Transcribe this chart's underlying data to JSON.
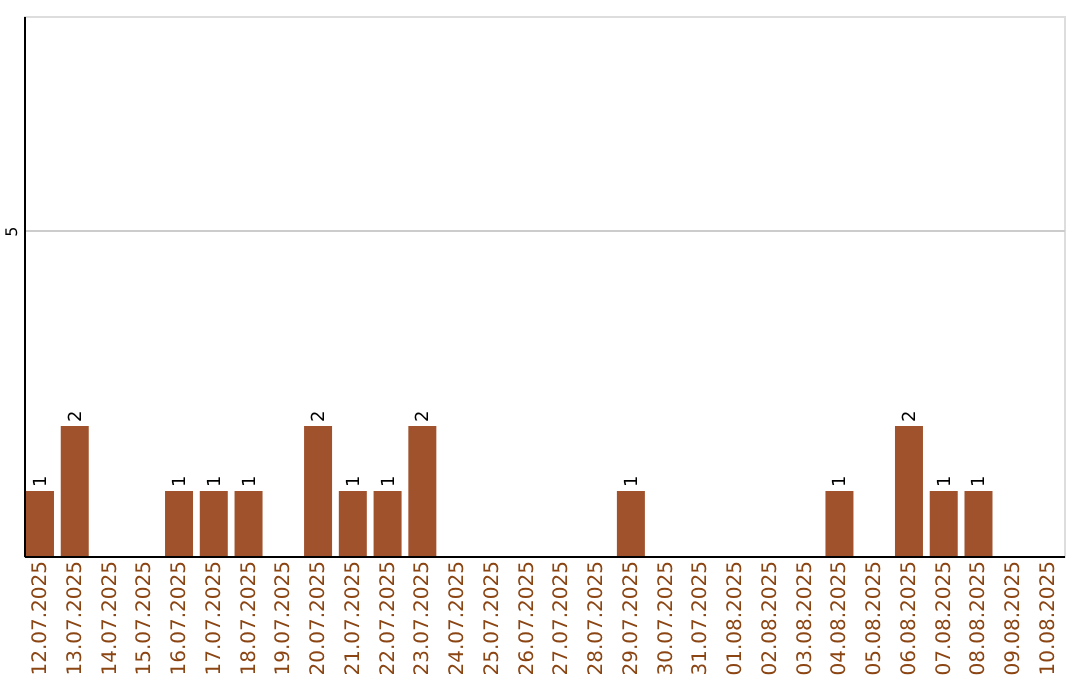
{
  "chart_data": {
    "type": "bar",
    "categories": [
      "12.07.2025",
      "13.07.2025",
      "14.07.2025",
      "15.07.2025",
      "16.07.2025",
      "17.07.2025",
      "18.07.2025",
      "19.07.2025",
      "20.07.2025",
      "21.07.2025",
      "22.07.2025",
      "23.07.2025",
      "24.07.2025",
      "25.07.2025",
      "26.07.2025",
      "27.07.2025",
      "28.07.2025",
      "29.07.2025",
      "30.07.2025",
      "31.07.2025",
      "01.08.2025",
      "02.08.2025",
      "03.08.2025",
      "04.08.2025",
      "05.08.2025",
      "06.08.2025",
      "07.08.2025",
      "08.08.2025",
      "09.08.2025",
      "10.08.2025"
    ],
    "values": [
      1,
      2,
      0,
      0,
      1,
      1,
      1,
      0,
      2,
      1,
      1,
      2,
      0,
      0,
      0,
      0,
      0,
      1,
      0,
      0,
      0,
      0,
      0,
      1,
      0,
      2,
      1,
      1,
      0,
      0
    ],
    "value_labels": [
      "1",
      "2",
      null,
      null,
      "1",
      "1",
      "1",
      null,
      "2",
      "1",
      "1",
      "2",
      null,
      null,
      null,
      null,
      null,
      "1",
      null,
      null,
      null,
      null,
      null,
      "1",
      null,
      "2",
      "1",
      "1",
      null,
      null
    ],
    "color": "#a0522d",
    "ylim": [
      0,
      8.3
    ],
    "yticks": [
      5
    ],
    "grid": "y"
  }
}
